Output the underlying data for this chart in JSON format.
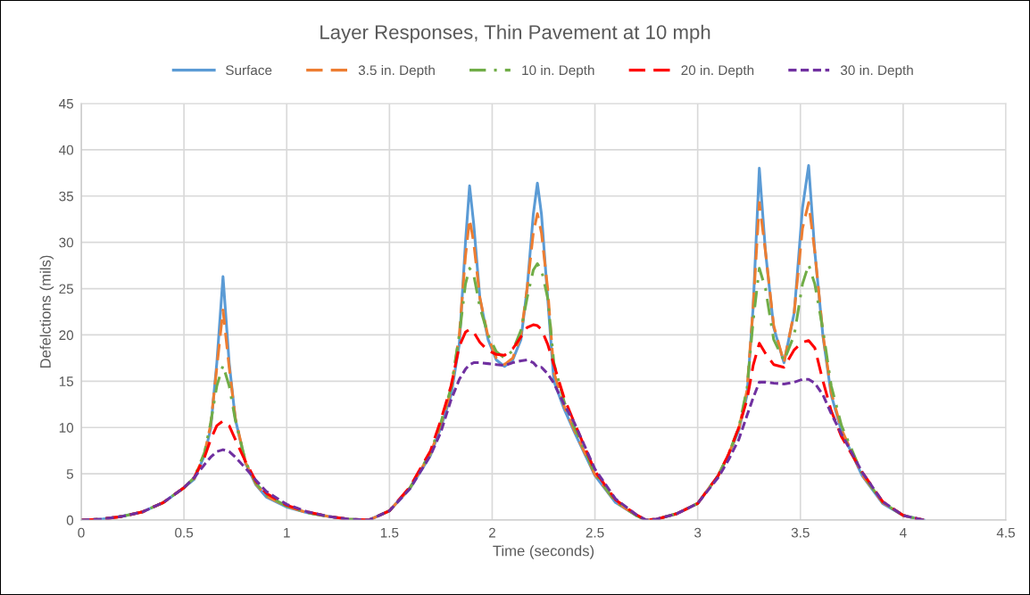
{
  "chart_data": {
    "type": "line",
    "title": "Layer Responses, Thin Pavement at 10 mph",
    "xlabel": "Time (seconds)",
    "ylabel": "Defelctions (mils)",
    "x": [
      0,
      0.1,
      0.2,
      0.3,
      0.4,
      0.5,
      0.55,
      0.6,
      0.63,
      0.66,
      0.69,
      0.72,
      0.75,
      0.8,
      0.85,
      0.9,
      1.0,
      1.1,
      1.2,
      1.3,
      1.4,
      1.5,
      1.6,
      1.7,
      1.75,
      1.8,
      1.84,
      1.87,
      1.89,
      1.91,
      1.94,
      1.98,
      2.02,
      2.06,
      2.1,
      2.14,
      2.17,
      2.2,
      2.22,
      2.24,
      2.27,
      2.3,
      2.35,
      2.4,
      2.5,
      2.6,
      2.7,
      2.75,
      2.8,
      2.9,
      3.0,
      3.1,
      3.15,
      3.2,
      3.24,
      3.27,
      3.3,
      3.33,
      3.37,
      3.42,
      3.47,
      3.51,
      3.54,
      3.57,
      3.61,
      3.65,
      3.7,
      3.8,
      3.9,
      4.0,
      4.1
    ],
    "series": [
      {
        "name": "Surface",
        "color": "#5b9bd5",
        "line_style": "solid",
        "values": [
          0,
          0.1,
          0.4,
          0.9,
          1.9,
          3.5,
          4.4,
          7.0,
          9.9,
          17,
          26.3,
          17,
          10.9,
          6.1,
          3.8,
          2.5,
          1.4,
          0.8,
          0.4,
          0.1,
          0,
          1.0,
          3.4,
          7.0,
          10,
          13.5,
          19,
          30,
          36.1,
          32,
          24,
          19.5,
          17.3,
          16.6,
          17.3,
          19.5,
          25,
          33,
          36.4,
          33,
          24,
          15,
          12,
          9.5,
          4.8,
          1.9,
          0.5,
          0,
          0.1,
          0.7,
          1.8,
          4.8,
          7,
          9.7,
          13.5,
          23,
          38.0,
          29,
          20.8,
          17.0,
          22.4,
          33.7,
          38.3,
          29,
          19.8,
          13.5,
          9.6,
          4.8,
          1.8,
          0.5,
          0
        ]
      },
      {
        "name": "3.5 in. Depth",
        "color": "#ed7d31",
        "line_style": "dashed",
        "values": [
          0,
          0.1,
          0.4,
          0.9,
          1.9,
          3.5,
          4.5,
          7.2,
          10.3,
          16.5,
          22.7,
          16.5,
          11,
          6.2,
          3.9,
          2.6,
          1.5,
          0.8,
          0.4,
          0.1,
          0,
          1.0,
          3.5,
          7.2,
          10.3,
          14,
          20,
          28.5,
          32.5,
          30,
          24,
          19.8,
          17.5,
          16.8,
          17.5,
          20,
          25,
          31,
          33.1,
          31,
          25,
          16,
          12.3,
          9.7,
          4.9,
          2.0,
          0.5,
          0,
          0.1,
          0.7,
          1.8,
          4.8,
          7.1,
          9.8,
          14,
          23,
          34.3,
          29,
          21,
          17.0,
          22.5,
          31.5,
          34.3,
          29,
          20,
          13.8,
          9.8,
          4.9,
          1.9,
          0.5,
          0
        ]
      },
      {
        "name": "10 in. Depth",
        "color": "#70ad47",
        "line_style": "dashdot",
        "values": [
          0,
          0.1,
          0.4,
          0.9,
          1.9,
          3.5,
          4.6,
          7.3,
          10.5,
          14.5,
          16.7,
          14.5,
          10.8,
          6.3,
          4.0,
          2.7,
          1.5,
          0.8,
          0.4,
          0.1,
          0,
          1.0,
          3.5,
          7.3,
          10.5,
          14.3,
          20,
          25.5,
          27.2,
          26.5,
          23,
          20,
          18.2,
          17.5,
          18.3,
          20.5,
          24,
          27,
          27.7,
          27,
          24,
          17,
          12.8,
          10,
          5.0,
          2.0,
          0.5,
          0,
          0.1,
          0.7,
          1.8,
          4.8,
          7.1,
          10,
          14.2,
          21.5,
          27.2,
          25,
          19.5,
          17.2,
          20,
          25.5,
          27.6,
          25.5,
          20.5,
          14.5,
          10.2,
          5.0,
          1.9,
          0.5,
          0
        ]
      },
      {
        "name": "20 in. Depth",
        "color": "#ff0000",
        "line_style": "dashed",
        "values": [
          0,
          0.1,
          0.4,
          0.9,
          1.9,
          3.5,
          4.6,
          6.8,
          8.7,
          10.2,
          10.7,
          10.2,
          8.7,
          6.3,
          4.2,
          2.9,
          1.6,
          0.9,
          0.4,
          0.1,
          0,
          1.0,
          3.6,
          7.5,
          10.8,
          14.5,
          18.8,
          20.3,
          20.6,
          20.3,
          19.2,
          18.3,
          17.9,
          17.8,
          18.5,
          19.8,
          20.8,
          21.1,
          21.0,
          20.6,
          19,
          16.8,
          13.2,
          10.5,
          5.3,
          2.2,
          0.6,
          0,
          0.1,
          0.7,
          1.8,
          4.8,
          7.1,
          10,
          13,
          16.7,
          19.1,
          18,
          16.8,
          16.5,
          18.4,
          19.2,
          19.4,
          18.6,
          15,
          11.8,
          9,
          5.2,
          2.0,
          0.5,
          0
        ]
      },
      {
        "name": "30 in. Depth",
        "color": "#7030a0",
        "line_style": "dotted",
        "values": [
          0,
          0.1,
          0.4,
          0.9,
          1.9,
          3.5,
          4.6,
          6.0,
          6.8,
          7.4,
          7.6,
          7.4,
          6.8,
          5.6,
          4.3,
          3.1,
          1.7,
          0.9,
          0.4,
          0.1,
          0,
          1.0,
          3.4,
          7.0,
          9.5,
          13,
          15.2,
          16.3,
          16.8,
          17.0,
          17.0,
          16.9,
          16.8,
          16.7,
          17.0,
          17.2,
          17.3,
          17.0,
          16.5,
          16.5,
          15.8,
          14.8,
          12.5,
          10.5,
          5.5,
          2.3,
          0.6,
          0,
          0.1,
          0.7,
          1.8,
          4.6,
          6.5,
          8.7,
          11.3,
          13.2,
          14.9,
          14.9,
          14.8,
          14.7,
          14.9,
          15.2,
          15.2,
          14.8,
          13.5,
          11.5,
          9.3,
          5.2,
          2.0,
          0.5,
          0
        ]
      }
    ],
    "xlim": [
      0,
      4.5
    ],
    "xticks": [
      0,
      0.5,
      1,
      1.5,
      2,
      2.5,
      3,
      3.5,
      4,
      4.5
    ],
    "ylim": [
      0,
      45
    ],
    "yticks": [
      0,
      5,
      10,
      15,
      20,
      25,
      30,
      35,
      40,
      45
    ],
    "grid": true,
    "legend": "top",
    "marker": "none"
  }
}
